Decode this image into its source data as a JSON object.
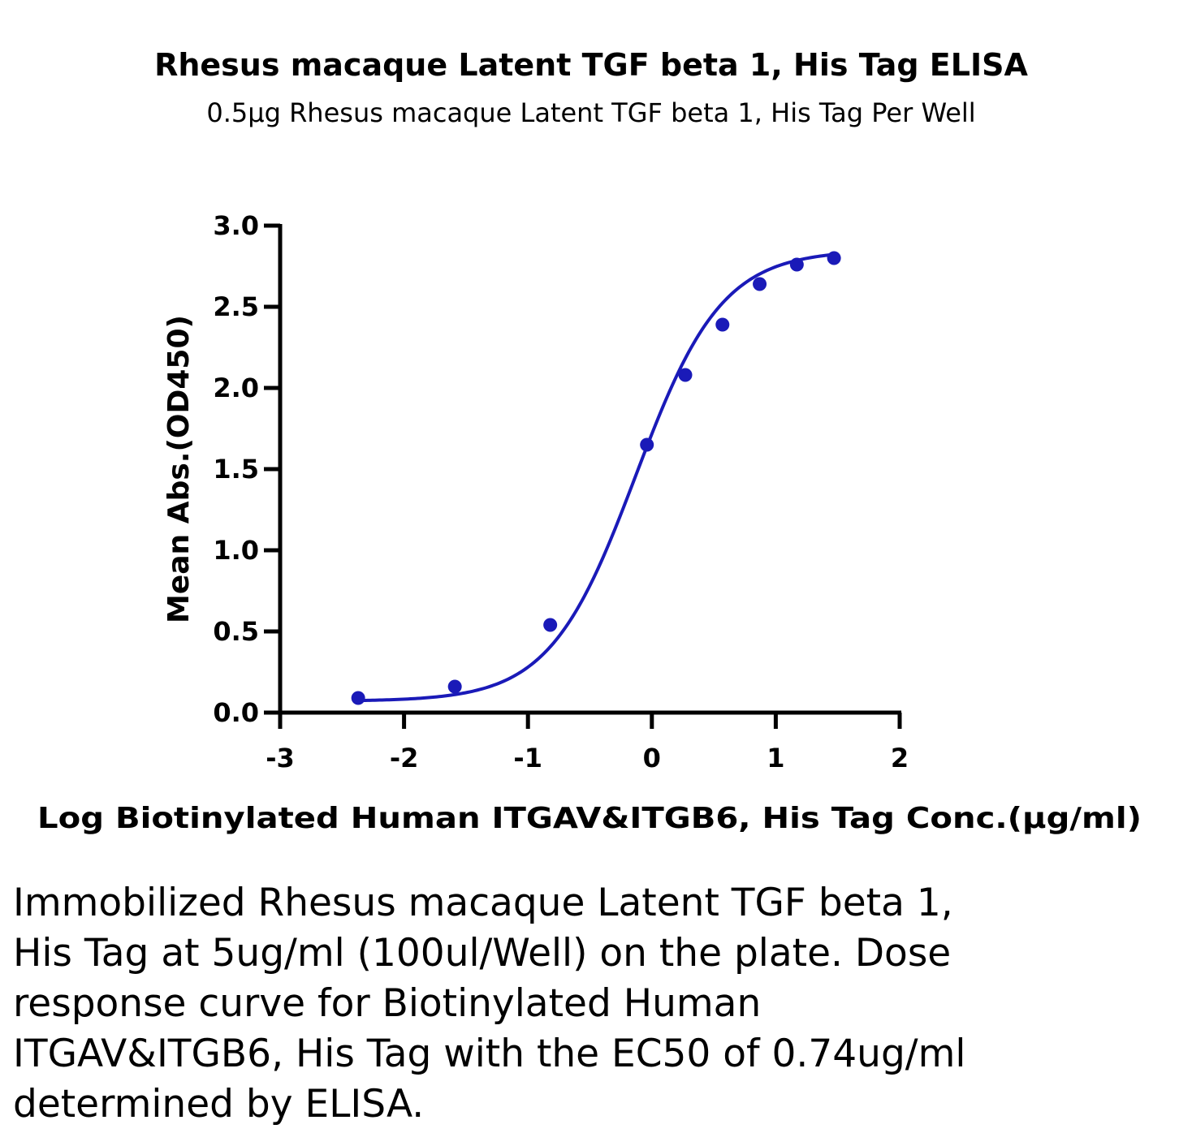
{
  "chart_data": {
    "type": "line",
    "title": "Rhesus macaque Latent TGF beta 1, His Tag ELISA",
    "subtitle": "0.5μg Rhesus macaque Latent TGF beta 1, His Tag Per Well",
    "xlabel": "Log Biotinylated Human ITGAV&ITGB6, His Tag Conc.(μg/ml)",
    "ylabel": "Mean Abs.(OD450)",
    "xlim": [
      -3,
      2
    ],
    "ylim": [
      0,
      3
    ],
    "x_ticks": [
      "-3",
      "-2",
      "-1",
      "0",
      "1",
      "2"
    ],
    "y_ticks": [
      "0.0",
      "0.5",
      "1.0",
      "1.5",
      "2.0",
      "2.5",
      "3.0"
    ],
    "grid": false,
    "legend": "none",
    "series": [
      {
        "color": "#1a1ab8",
        "points": [
          {
            "x": -2.37,
            "y": 0.09
          },
          {
            "x": -1.59,
            "y": 0.16
          },
          {
            "x": -0.82,
            "y": 0.54
          },
          {
            "x": -0.04,
            "y": 1.65
          },
          {
            "x": 0.27,
            "y": 2.08
          },
          {
            "x": 0.57,
            "y": 2.39
          },
          {
            "x": 0.87,
            "y": 2.64
          },
          {
            "x": 1.17,
            "y": 2.76
          },
          {
            "x": 1.47,
            "y": 2.8
          }
        ],
        "fit_curve": {
          "bottom": 0.07,
          "top": 2.85,
          "log_ec50": -0.13,
          "hill_slope": 1.25
        }
      }
    ]
  },
  "caption": "Immobilized Rhesus macaque Latent TGF beta 1, His Tag at 5ug/ml (100ul/Well) on the plate. Dose response curve for Biotinylated Human ITGAV&ITGB6, His Tag with the EC50 of 0.74ug/ml determined by ELISA."
}
